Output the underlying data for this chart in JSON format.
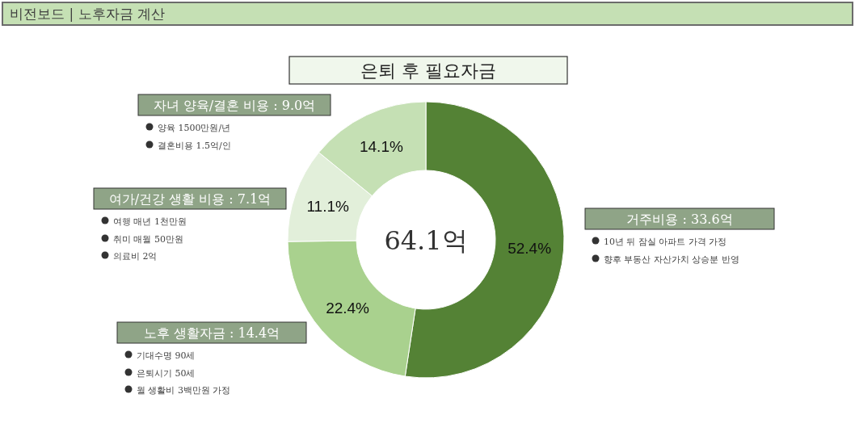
{
  "chart_data": {
    "type": "donut",
    "title": "은퇴 후 필요자금",
    "subtitle": "비전보드 | 노후자금 계산",
    "categories": [
      "거주비용 : 33.6억",
      "노후 생활자금 : 14.4억",
      "여가/건강 생활 비용 : 7.1억",
      "자녀 양육/결혼 비용 : 9.0억"
    ],
    "values": [
      52.4,
      22.4,
      11.1,
      14.1
    ],
    "colors": [
      "#548235",
      "#a9d18e",
      "#e2efda",
      "#c5e0b4"
    ],
    "value_labels": [
      "52.4%",
      "22.4%",
      "11.1%",
      "14.1%"
    ],
    "annotations": [
      "64.1억",
      "10년 뒤 잠실 아파트 가격 가정",
      "향후 부동산 자산가치 상승분 반영",
      "기대수명 90세",
      "은퇴시기 50세",
      "월 생활비 3백만원 가정",
      "여행 매년 1천만원",
      "취미 매월 50만원",
      "의료비 2억",
      "양육 1500만원/년",
      "결혼비용 1.5억/인"
    ]
  }
}
